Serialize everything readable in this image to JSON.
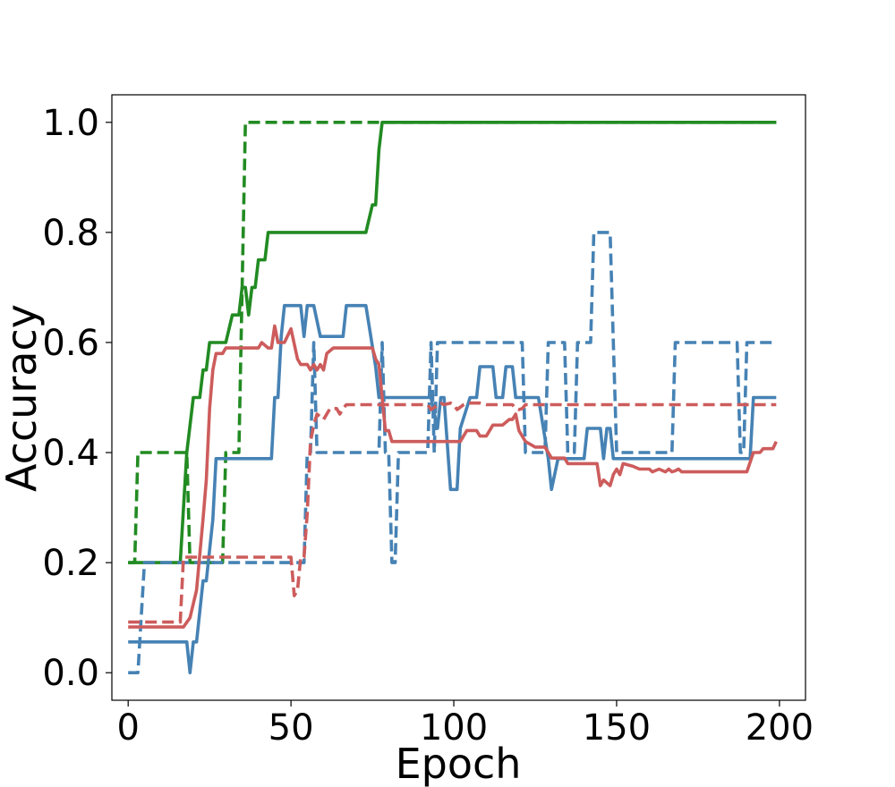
{
  "chart_data": {
    "type": "line",
    "title": "",
    "xlabel": "Epoch",
    "ylabel": "Accuracy",
    "xlim": [
      -5,
      208
    ],
    "ylim": [
      -0.05,
      1.05
    ],
    "xticks": [
      0,
      50,
      100,
      150,
      200
    ],
    "yticks": [
      0.0,
      0.2,
      0.4,
      0.6,
      0.8,
      1.0
    ],
    "xtick_labels": [
      "0",
      "50",
      "100",
      "150",
      "200"
    ],
    "ytick_labels": [
      "0.0",
      "0.2",
      "0.4",
      "0.6",
      "0.8",
      "1.0"
    ],
    "grid": false,
    "legend": false,
    "series": [
      {
        "color": "#228b22",
        "style": "solid",
        "points": [
          [
            0,
            0.2
          ],
          [
            16,
            0.2
          ],
          [
            18,
            0.4
          ],
          [
            20,
            0.5
          ],
          [
            22,
            0.5
          ],
          [
            23,
            0.55
          ],
          [
            24,
            0.55
          ],
          [
            25,
            0.6
          ],
          [
            30,
            0.6
          ],
          [
            32,
            0.65
          ],
          [
            34,
            0.65
          ],
          [
            35,
            0.7
          ],
          [
            36,
            0.7
          ],
          [
            37,
            0.65
          ],
          [
            38,
            0.7
          ],
          [
            39,
            0.7
          ],
          [
            40,
            0.75
          ],
          [
            42,
            0.75
          ],
          [
            43,
            0.8
          ],
          [
            73,
            0.8
          ],
          [
            75,
            0.85
          ],
          [
            76,
            0.85
          ],
          [
            77,
            0.95
          ],
          [
            78,
            1.0
          ],
          [
            199,
            1.0
          ]
        ]
      },
      {
        "color": "#228b22",
        "style": "dashed",
        "points": [
          [
            0,
            0.2
          ],
          [
            2,
            0.2
          ],
          [
            3,
            0.4
          ],
          [
            18,
            0.4
          ],
          [
            19,
            0.2
          ],
          [
            29,
            0.2
          ],
          [
            30,
            0.4
          ],
          [
            34,
            0.4
          ],
          [
            36,
            1.0
          ],
          [
            199,
            1.0
          ]
        ]
      },
      {
        "color": "#4682b4",
        "style": "solid",
        "points": [
          [
            0,
            0.056
          ],
          [
            18,
            0.056
          ],
          [
            19,
            0.0
          ],
          [
            20,
            0.056
          ],
          [
            21,
            0.056
          ],
          [
            23,
            0.167
          ],
          [
            24,
            0.167
          ],
          [
            26,
            0.278
          ],
          [
            27,
            0.389
          ],
          [
            44,
            0.389
          ],
          [
            45,
            0.5
          ],
          [
            46,
            0.5
          ],
          [
            47,
            0.611
          ],
          [
            48,
            0.667
          ],
          [
            53,
            0.667
          ],
          [
            54,
            0.611
          ],
          [
            55,
            0.667
          ],
          [
            57,
            0.667
          ],
          [
            59,
            0.611
          ],
          [
            66,
            0.611
          ],
          [
            67,
            0.667
          ],
          [
            73,
            0.667
          ],
          [
            76,
            0.556
          ],
          [
            77,
            0.5
          ],
          [
            93,
            0.5
          ],
          [
            95,
            0.444
          ],
          [
            96,
            0.5
          ],
          [
            97,
            0.5
          ],
          [
            99,
            0.333
          ],
          [
            101,
            0.333
          ],
          [
            102,
            0.444
          ],
          [
            105,
            0.5
          ],
          [
            107,
            0.5
          ],
          [
            108,
            0.556
          ],
          [
            112,
            0.556
          ],
          [
            113,
            0.5
          ],
          [
            115,
            0.5
          ],
          [
            116,
            0.556
          ],
          [
            118,
            0.556
          ],
          [
            119,
            0.5
          ],
          [
            126,
            0.5
          ],
          [
            129,
            0.389
          ],
          [
            130,
            0.333
          ],
          [
            132,
            0.389
          ],
          [
            140,
            0.389
          ],
          [
            141,
            0.444
          ],
          [
            145,
            0.444
          ],
          [
            146,
            0.389
          ],
          [
            147,
            0.444
          ],
          [
            148,
            0.444
          ],
          [
            149,
            0.389
          ],
          [
            191,
            0.389
          ],
          [
            192,
            0.5
          ],
          [
            199,
            0.5
          ]
        ]
      },
      {
        "color": "#4682b4",
        "style": "dashed",
        "points": [
          [
            0,
            0.0
          ],
          [
            3,
            0.0
          ],
          [
            5,
            0.2
          ],
          [
            54,
            0.2
          ],
          [
            55,
            0.4
          ],
          [
            56,
            0.4
          ],
          [
            57,
            0.6
          ],
          [
            58,
            0.4
          ],
          [
            77,
            0.4
          ],
          [
            78,
            0.6
          ],
          [
            79,
            0.4
          ],
          [
            80,
            0.4
          ],
          [
            81,
            0.2
          ],
          [
            82,
            0.2
          ],
          [
            83,
            0.4
          ],
          [
            92,
            0.4
          ],
          [
            93,
            0.6
          ],
          [
            94,
            0.4
          ],
          [
            95,
            0.6
          ],
          [
            121,
            0.6
          ],
          [
            122,
            0.4
          ],
          [
            128,
            0.4
          ],
          [
            129,
            0.6
          ],
          [
            134,
            0.6
          ],
          [
            135,
            0.4
          ],
          [
            137,
            0.4
          ],
          [
            138,
            0.6
          ],
          [
            142,
            0.6
          ],
          [
            143,
            0.8
          ],
          [
            148,
            0.8
          ],
          [
            149,
            0.6
          ],
          [
            150,
            0.4
          ],
          [
            167,
            0.4
          ],
          [
            168,
            0.6
          ],
          [
            187,
            0.6
          ],
          [
            188,
            0.4
          ],
          [
            189,
            0.4
          ],
          [
            190,
            0.6
          ],
          [
            199,
            0.6
          ]
        ]
      },
      {
        "color": "#cd5c5c",
        "style": "solid",
        "points": [
          [
            0,
            0.083
          ],
          [
            17,
            0.083
          ],
          [
            19,
            0.1
          ],
          [
            21,
            0.15
          ],
          [
            23,
            0.28
          ],
          [
            24,
            0.35
          ],
          [
            25,
            0.48
          ],
          [
            26,
            0.55
          ],
          [
            27,
            0.58
          ],
          [
            29,
            0.58
          ],
          [
            30,
            0.59
          ],
          [
            40,
            0.59
          ],
          [
            41,
            0.6
          ],
          [
            43,
            0.59
          ],
          [
            44,
            0.59
          ],
          [
            45,
            0.63
          ],
          [
            46,
            0.6
          ],
          [
            48,
            0.6
          ],
          [
            50,
            0.625
          ],
          [
            52,
            0.57
          ],
          [
            53,
            0.56
          ],
          [
            55,
            0.56
          ],
          [
            56,
            0.55
          ],
          [
            57,
            0.56
          ],
          [
            58,
            0.55
          ],
          [
            59,
            0.56
          ],
          [
            60,
            0.55
          ],
          [
            61,
            0.58
          ],
          [
            63,
            0.59
          ],
          [
            70,
            0.59
          ],
          [
            75,
            0.59
          ],
          [
            76,
            0.57
          ],
          [
            77,
            0.56
          ],
          [
            78,
            0.5
          ],
          [
            79,
            0.44
          ],
          [
            80,
            0.44
          ],
          [
            81,
            0.42
          ],
          [
            102,
            0.42
          ],
          [
            104,
            0.44
          ],
          [
            107,
            0.44
          ],
          [
            108,
            0.43
          ],
          [
            110,
            0.43
          ],
          [
            112,
            0.45
          ],
          [
            115,
            0.45
          ],
          [
            117,
            0.46
          ],
          [
            118,
            0.46
          ],
          [
            119,
            0.47
          ],
          [
            120,
            0.44
          ],
          [
            122,
            0.42
          ],
          [
            125,
            0.41
          ],
          [
            128,
            0.41
          ],
          [
            130,
            0.39
          ],
          [
            134,
            0.39
          ],
          [
            135,
            0.38
          ],
          [
            144,
            0.38
          ],
          [
            145,
            0.34
          ],
          [
            146,
            0.35
          ],
          [
            148,
            0.34
          ],
          [
            149,
            0.36
          ],
          [
            150,
            0.37
          ],
          [
            151,
            0.36
          ],
          [
            152,
            0.38
          ],
          [
            155,
            0.375
          ],
          [
            157,
            0.37
          ],
          [
            160,
            0.37
          ],
          [
            161,
            0.365
          ],
          [
            163,
            0.37
          ],
          [
            165,
            0.365
          ],
          [
            166,
            0.37
          ],
          [
            167,
            0.365
          ],
          [
            168,
            0.367
          ],
          [
            169,
            0.37
          ],
          [
            170,
            0.365
          ],
          [
            190,
            0.365
          ],
          [
            192,
            0.4
          ],
          [
            194,
            0.4
          ],
          [
            195,
            0.407
          ],
          [
            198,
            0.407
          ],
          [
            199,
            0.42
          ]
        ]
      },
      {
        "color": "#cd5c5c",
        "style": "dashed",
        "points": [
          [
            0,
            0.092
          ],
          [
            16,
            0.092
          ],
          [
            17,
            0.21
          ],
          [
            50,
            0.21
          ],
          [
            51,
            0.14
          ],
          [
            52,
            0.15
          ],
          [
            53,
            0.21
          ],
          [
            54,
            0.21
          ],
          [
            55,
            0.29
          ],
          [
            56,
            0.42
          ],
          [
            57,
            0.45
          ],
          [
            58,
            0.47
          ],
          [
            60,
            0.46
          ],
          [
            62,
            0.48
          ],
          [
            64,
            0.48
          ],
          [
            65,
            0.47
          ],
          [
            66,
            0.48
          ],
          [
            67,
            0.487
          ],
          [
            92,
            0.487
          ],
          [
            93,
            0.478
          ],
          [
            96,
            0.49
          ],
          [
            97,
            0.487
          ],
          [
            99,
            0.49
          ],
          [
            100,
            0.487
          ],
          [
            101,
            0.478
          ],
          [
            103,
            0.487
          ],
          [
            104,
            0.49
          ],
          [
            108,
            0.49
          ],
          [
            110,
            0.487
          ],
          [
            118,
            0.487
          ],
          [
            119,
            0.48
          ],
          [
            120,
            0.478
          ],
          [
            121,
            0.48
          ],
          [
            122,
            0.487
          ],
          [
            199,
            0.487
          ]
        ]
      }
    ]
  }
}
